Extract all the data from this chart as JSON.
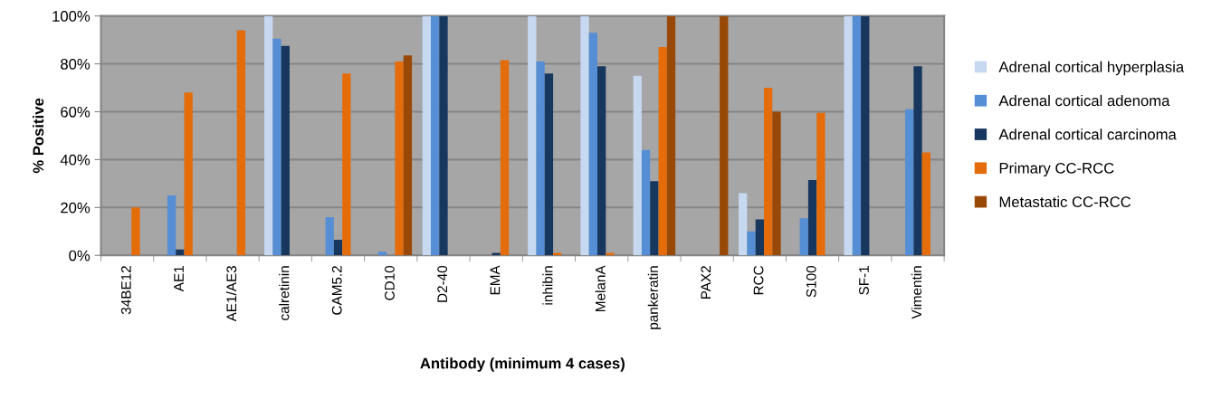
{
  "chart_data": {
    "type": "bar",
    "xlabel": "Antibody (minimum 4 cases)",
    "ylabel": "% Positive",
    "categories": [
      "34BE12",
      "AE1",
      "AE1/AE3",
      "calretinin",
      "CAM5.2",
      "CD10",
      "D2-40",
      "EMA",
      "inhibin",
      "MelanA",
      "pankeratin",
      "PAX2",
      "RCC",
      "S100",
      "SF-1",
      "Vimentin"
    ],
    "series": [
      {
        "name": "Adrenal cortical hyperplasia",
        "color": "#c6d9f1",
        "values": [
          0,
          0,
          0,
          100,
          0,
          0,
          100,
          0,
          100,
          100,
          75,
          0,
          26,
          0,
          100,
          0
        ]
      },
      {
        "name": "Adrenal cortical adenoma",
        "color": "#558ed5",
        "values": [
          0,
          25,
          0,
          90.5,
          16,
          1.5,
          100,
          0,
          81,
          93,
          44,
          0,
          10,
          15.5,
          100,
          61
        ]
      },
      {
        "name": "Adrenal cortical carcinoma",
        "color": "#17375e",
        "values": [
          0,
          2.5,
          0,
          87.5,
          6.5,
          0,
          100,
          1,
          76,
          79,
          31,
          0,
          15,
          31.5,
          100,
          79
        ]
      },
      {
        "name": "Primary CC-RCC",
        "color": "#e46c0a",
        "values": [
          20,
          68,
          94,
          0,
          76,
          81,
          0,
          81.5,
          1,
          1,
          87,
          0,
          70,
          59.5,
          0,
          43
        ]
      },
      {
        "name": "Metastatic CC-RCC",
        "color": "#984807",
        "values": [
          0,
          0,
          0,
          0,
          0,
          83.5,
          0,
          0,
          0,
          0,
          100,
          100,
          60,
          0,
          0,
          0
        ]
      }
    ],
    "ylim": [
      0,
      100
    ],
    "yticks": [
      {
        "value": 0,
        "label": "0%"
      },
      {
        "value": 20,
        "label": "20%"
      },
      {
        "value": 40,
        "label": "40%"
      },
      {
        "value": 60,
        "label": "60%"
      },
      {
        "value": 80,
        "label": "80%"
      },
      {
        "value": 100,
        "label": "100%"
      }
    ],
    "grid": "y",
    "legend": "right"
  }
}
